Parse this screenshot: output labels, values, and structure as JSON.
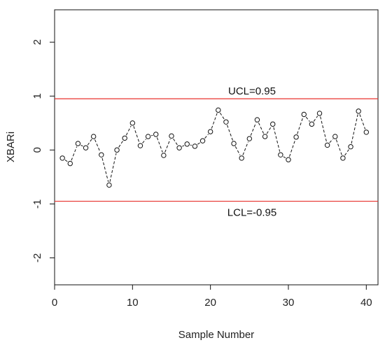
{
  "chart_data": {
    "type": "line",
    "xlabel": "Sample Number",
    "ylabel": "XBARi",
    "xlim": [
      0,
      41.5
    ],
    "ylim": [
      -2.5,
      2.6
    ],
    "xticks": [
      0,
      10,
      20,
      30,
      40
    ],
    "yticks": [
      -2,
      -1,
      0,
      1,
      2
    ],
    "x": [
      1,
      2,
      3,
      4,
      5,
      6,
      7,
      8,
      9,
      10,
      11,
      12,
      13,
      14,
      15,
      16,
      17,
      18,
      19,
      20,
      21,
      22,
      23,
      24,
      25,
      26,
      27,
      28,
      29,
      30,
      31,
      32,
      33,
      34,
      35,
      36,
      37,
      38,
      39,
      40
    ],
    "series": [
      {
        "values": [
          -0.15,
          -0.25,
          0.12,
          0.04,
          0.25,
          -0.09,
          -0.65,
          0.0,
          0.22,
          0.5,
          0.08,
          0.25,
          0.29,
          -0.1,
          0.26,
          0.04,
          0.11,
          0.07,
          0.17,
          0.34,
          0.74,
          0.52,
          0.12,
          -0.15,
          0.21,
          0.56,
          0.25,
          0.48,
          -0.09,
          -0.18,
          0.24,
          0.66,
          0.48,
          0.68,
          0.09,
          0.25,
          -0.15,
          0.06,
          0.72,
          0.33
        ]
      }
    ],
    "limits": [
      {
        "label": "UCL=0.95",
        "value": 0.95,
        "color": "#e8322d"
      },
      {
        "label": "LCL=-0.95",
        "value": -0.95,
        "color": "#e8322d"
      }
    ],
    "grid": false,
    "legend": "none"
  }
}
